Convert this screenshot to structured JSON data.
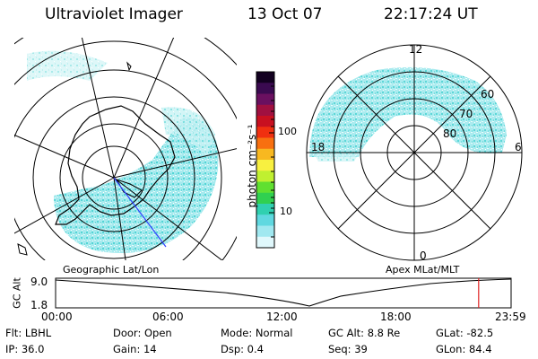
{
  "header": {
    "instrument": "Ultraviolet Imager",
    "date": "13 Oct 07",
    "time": "22:17:24 UT"
  },
  "left_panel": {
    "caption": "Geographic Lat/Lon"
  },
  "right_panel": {
    "caption": "Apex MLat/MLT",
    "mlt_labels": {
      "top": "12",
      "left": "18",
      "right": "6",
      "bottom": "0"
    },
    "lat_labels": [
      "60",
      "70",
      "80"
    ]
  },
  "colorbar": {
    "label": "photon cm⁻²s⁻¹",
    "ticks": [
      "100",
      "10"
    ],
    "scale": "log",
    "colors": [
      "#120020",
      "#3a0a50",
      "#6a1060",
      "#a01040",
      "#c81020",
      "#f03010",
      "#f87010",
      "#f8b820",
      "#f8f040",
      "#c0f030",
      "#60e030",
      "#30d050",
      "#30d0b0",
      "#60d8e0",
      "#a0e8f0",
      "#e0f8fc"
    ]
  },
  "altitude_plot": {
    "ylabel": "GC Alt",
    "yticks": [
      "9.0",
      "1.8"
    ],
    "xticks": [
      "00:00",
      "06:00",
      "12:00",
      "18:00",
      "23:59"
    ],
    "current_time_marker_hour": 22.29
  },
  "footer": {
    "row1": [
      {
        "key": "filter",
        "text": "Flt: LBHL"
      },
      {
        "key": "door",
        "text": "Door: Open"
      },
      {
        "key": "mode",
        "text": "Mode: Normal"
      },
      {
        "key": "gc_alt",
        "text": "GC Alt: 8.8 Re"
      },
      {
        "key": "glat",
        "text": "GLat: -82.5"
      }
    ],
    "row2": [
      {
        "key": "ip",
        "text": "IP: 36.0"
      },
      {
        "key": "gain",
        "text": "Gain: 14"
      },
      {
        "key": "dsp",
        "text": "Dsp:    0.4"
      },
      {
        "key": "seq",
        "text": "Seq: 39"
      },
      {
        "key": "glon",
        "text": "GLon:  84.4"
      }
    ]
  }
}
